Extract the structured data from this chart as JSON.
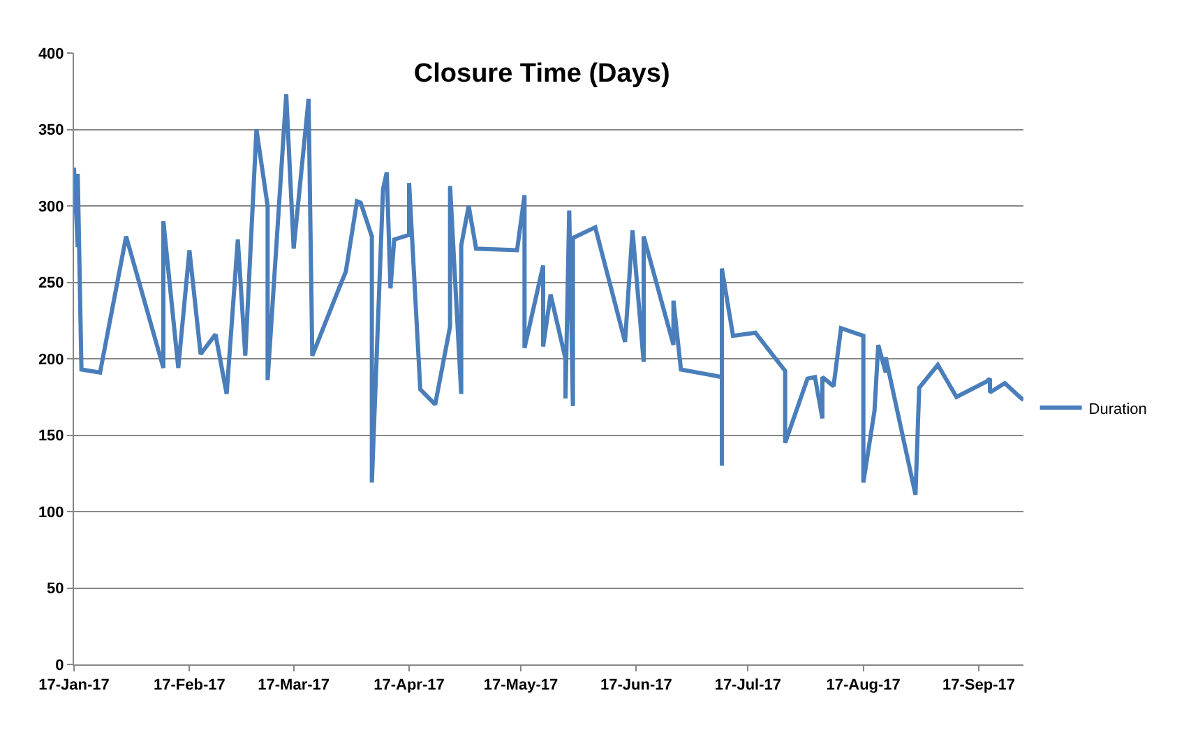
{
  "chart_data": {
    "type": "line",
    "title": "Closure Time (Days)",
    "x": [
      "--01-17",
      "--01-18",
      "--01-18",
      "--01-19",
      "--01-24",
      "--01-31",
      "--02-10",
      "--02-10",
      "--02-14",
      "--02-17",
      "--02-20",
      "--02-24",
      "--02-27",
      "--03-02",
      "--03-04",
      "--03-07",
      "--03-10",
      "--03-10",
      "--03-15",
      "--03-17",
      "--03-21",
      "--03-22",
      "--03-29",
      "--03-31",
      "--04-03",
      "--04-04",
      "--04-07",
      "--04-07",
      "--04-10",
      "--04-11",
      "--04-12",
      "--04-13",
      "--04-17",
      "--04-17",
      "--04-20",
      "--04-24",
      "--04-28",
      "--04-28",
      "--05-01",
      "--05-01",
      "--05-03",
      "--05-05",
      "--05-16",
      "--05-18",
      "--05-18",
      "--05-23",
      "--05-23",
      "--05-25",
      "--05-29",
      "--05-29",
      "--05-30",
      "--05-31",
      "--05-31",
      "--06-06",
      "--06-14",
      "--06-16",
      "--06-19",
      "--06-19",
      "--06-27",
      "--06-27",
      "--06-29",
      "--07-10",
      "--07-10",
      "--07-10",
      "--07-13",
      "--07-19",
      "--07-27",
      "--07-27",
      "--08-02",
      "--08-04",
      "--08-06",
      "--08-06",
      "--08-09",
      "--08-11",
      "--08-17",
      "--08-17",
      "--08-20",
      "--08-21",
      "--08-23",
      "--08-23",
      "--08-31",
      "--09-01",
      "--09-06",
      "--09-11",
      "--09-19",
      "--09-20",
      "--09-20",
      "--09-24",
      "--09-28",
      "--09-29"
    ],
    "series": [
      {
        "name": "Duration",
        "color": "#4a7ebb",
        "values": [
          325,
          273,
          321,
          193,
          191,
          280,
          194,
          290,
          194,
          271,
          203,
          216,
          177,
          278,
          202,
          350,
          300,
          186,
          373,
          272,
          370,
          202,
          245,
          257,
          303,
          302,
          280,
          119,
          311,
          322,
          246,
          278,
          281,
          315,
          180,
          170,
          221,
          313,
          177,
          274,
          300,
          272,
          271,
          307,
          207,
          261,
          208,
          242,
          200,
          174,
          297,
          169,
          279,
          286,
          211,
          284,
          198,
          280,
          209,
          238,
          193,
          188,
          130,
          259,
          215,
          217,
          192,
          145,
          187,
          188,
          161,
          188,
          182,
          220,
          215,
          119,
          166,
          209,
          191,
          201,
          111,
          181,
          196,
          175,
          185,
          187,
          178,
          184,
          175,
          173
        ]
      }
    ],
    "xlim": [
      "--01-17",
      "--09-29"
    ],
    "xticks": [
      {
        "value": "--01-17",
        "label": "17-Jan-17"
      },
      {
        "value": "--02-17",
        "label": "17-Feb-17"
      },
      {
        "value": "--03-17",
        "label": "17-Mar-17"
      },
      {
        "value": "--04-17",
        "label": "17-Apr-17"
      },
      {
        "value": "--05-17",
        "label": "17-May-17"
      },
      {
        "value": "--06-17",
        "label": "17-Jun-17"
      },
      {
        "value": "--07-17",
        "label": "17-Jul-17"
      },
      {
        "value": "--08-17",
        "label": "17-Aug-17"
      },
      {
        "value": "--09-17",
        "label": "17-Sep-17"
      }
    ],
    "ylim": [
      0,
      400
    ],
    "yticks": [
      0,
      50,
      100,
      150,
      200,
      250,
      300,
      350,
      400
    ],
    "grid": "y",
    "legend": "right"
  }
}
